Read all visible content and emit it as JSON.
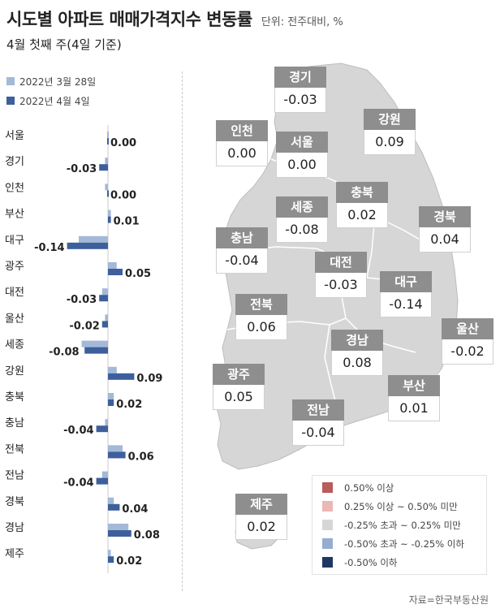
{
  "header": {
    "title": "시도별 아파트 매매가격지수 변동률",
    "unit": "단위: 전주대비, %",
    "subtitle": "4월 첫째 주(4일 기준)"
  },
  "colors": {
    "prev_week": "#a4b8d8",
    "this_week": "#3d5f9c",
    "map_fill": "#d6d6d6",
    "tag_bg": "#8e8e8e"
  },
  "legend": [
    {
      "label": "2022년 3월 28일",
      "color": "#a4b8d8"
    },
    {
      "label": "2022년 4월 4일",
      "color": "#3d5f9c"
    }
  ],
  "chart_data": {
    "type": "bar",
    "orientation": "horizontal",
    "categories": [
      "서울",
      "경기",
      "인천",
      "부산",
      "대구",
      "광주",
      "대전",
      "울산",
      "세종",
      "강원",
      "충북",
      "충남",
      "전북",
      "전남",
      "경북",
      "경남",
      "제주"
    ],
    "series": [
      {
        "name": "2022년 3월 28일",
        "values": [
          0.0,
          -0.01,
          -0.01,
          0.01,
          -0.1,
          0.03,
          -0.02,
          -0.01,
          -0.09,
          0.03,
          0.02,
          -0.01,
          0.05,
          -0.02,
          0.02,
          0.07,
          0.01
        ]
      },
      {
        "name": "2022년 4월 4일",
        "values": [
          0.0,
          -0.03,
          0.0,
          0.01,
          -0.14,
          0.05,
          -0.03,
          -0.02,
          -0.08,
          0.09,
          0.02,
          -0.04,
          0.06,
          -0.04,
          0.04,
          0.08,
          0.02
        ]
      }
    ],
    "value_labels": [
      "0.00",
      "-0.03",
      "0.00",
      "0.01",
      "-0.14",
      "0.05",
      "-0.03",
      "-0.02",
      "-0.08",
      "0.09",
      "0.02",
      "-0.04",
      "0.06",
      "-0.04",
      "0.04",
      "0.08",
      "0.02"
    ]
  },
  "map": {
    "regions": [
      {
        "name": "경기",
        "value": "-0.03"
      },
      {
        "name": "인천",
        "value": "0.00"
      },
      {
        "name": "서울",
        "value": "0.00"
      },
      {
        "name": "강원",
        "value": "0.09"
      },
      {
        "name": "충북",
        "value": "0.02"
      },
      {
        "name": "세종",
        "value": "-0.08"
      },
      {
        "name": "경북",
        "value": "0.04"
      },
      {
        "name": "충남",
        "value": "-0.04"
      },
      {
        "name": "대전",
        "value": "-0.03"
      },
      {
        "name": "대구",
        "value": "-0.14"
      },
      {
        "name": "전북",
        "value": "0.06"
      },
      {
        "name": "울산",
        "value": "-0.02"
      },
      {
        "name": "경남",
        "value": "0.08"
      },
      {
        "name": "광주",
        "value": "0.05"
      },
      {
        "name": "부산",
        "value": "0.01"
      },
      {
        "name": "전남",
        "value": "-0.04"
      },
      {
        "name": "제주",
        "value": "0.02"
      }
    ],
    "legend": [
      {
        "label": "0.50% 이상",
        "color": "#b85c5c"
      },
      {
        "label": "0.25% 이상 ~ 0.50% 미만",
        "color": "#ebb7b7"
      },
      {
        "label": "-0.25% 초과 ~ 0.25% 미만",
        "color": "#d6d6d6"
      },
      {
        "label": "-0.50% 초과 ~ -0.25% 이하",
        "color": "#98acd0"
      },
      {
        "label": "-0.50% 이하",
        "color": "#1e3864"
      }
    ]
  },
  "source": "자료=한국부동산원"
}
